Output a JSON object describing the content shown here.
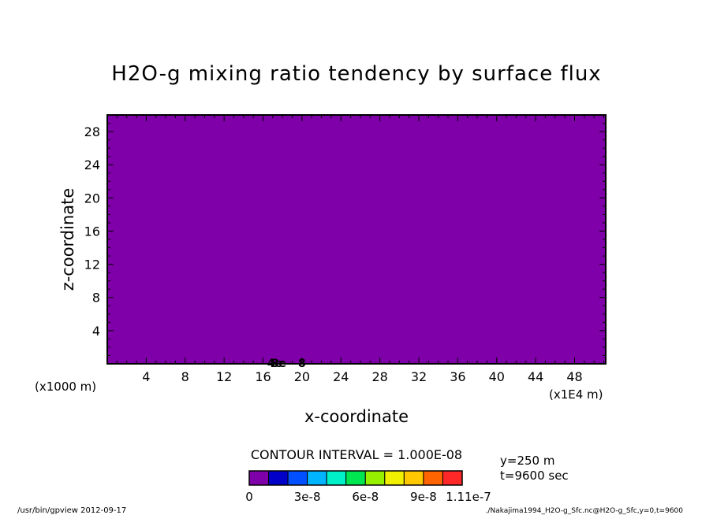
{
  "chart_data": {
    "type": "heatmap",
    "title": "H2O-g mixing ratio tendency by surface flux",
    "xlabel": "x-coordinate",
    "ylabel": "z-coordinate",
    "x_unit_label": "(x1E4 m)",
    "y_unit_label": "(x1000 m)",
    "xlim": [
      0,
      51.2
    ],
    "ylim": [
      0,
      30
    ],
    "x_ticks": [
      4,
      8,
      12,
      16,
      20,
      24,
      28,
      32,
      36,
      40,
      44,
      48
    ],
    "y_ticks": [
      4,
      8,
      12,
      16,
      20,
      24,
      28
    ],
    "field_color": "#7f00a8",
    "contour_labels": [
      {
        "x": 17.2,
        "z": 0.1,
        "text": "4e"
      },
      {
        "x": 17.6,
        "z": 0.1,
        "text": "8e"
      },
      {
        "x": 20.0,
        "z": 0.1,
        "text": "8"
      }
    ],
    "contour_interval_text": "CONTOUR INTERVAL = 1.000E-08",
    "colorbar": {
      "colors": [
        "#7f00a8",
        "#0000c8",
        "#0050ff",
        "#00b4ff",
        "#00f0c8",
        "#00e650",
        "#96f000",
        "#f0f000",
        "#ffc800",
        "#ff6400",
        "#ff2828"
      ],
      "tick_labels": [
        "0",
        "3e-8",
        "6e-8",
        "9e-8",
        "1.11e-7"
      ],
      "tick_positions": [
        0,
        3,
        6,
        9,
        11
      ]
    }
  },
  "annotations": {
    "slice": "y=250 m",
    "time": "t=9600 sec"
  },
  "footer": {
    "left": "/usr/bin/gpview  2012-09-17",
    "right": "./Nakajima1994_H2O-g_Sfc.nc@H2O-g_Sfc,y=0,t=9600"
  }
}
